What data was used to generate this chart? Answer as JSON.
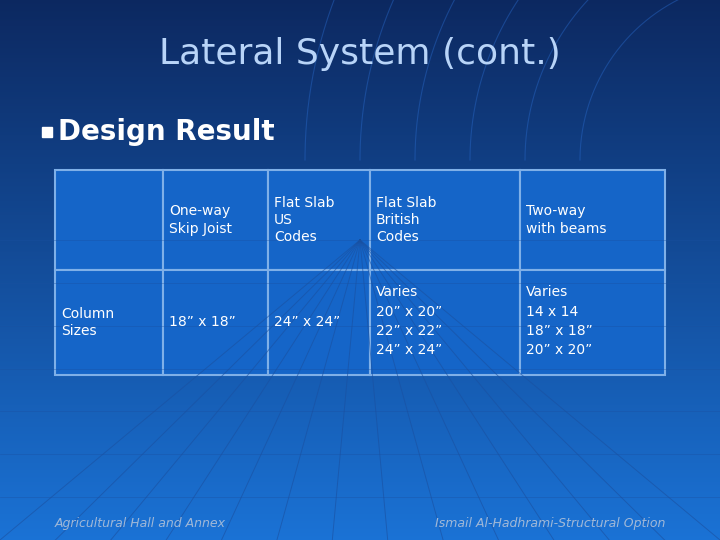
{
  "title": "Lateral System (cont.)",
  "bullet": "Design Result",
  "bg_color_top": "#1a72d5",
  "bg_color_bottom": "#0d2f6e",
  "title_color": "#b8d4f8",
  "bullet_color": "#ffffff",
  "bullet_sq_color": "#ffffff",
  "table_border_color": "#7fb0e8",
  "table_text_color": "#ffffff",
  "footer_left": "Agricultural Hall and Annex",
  "footer_right": "Ismail Al-Hadhrami-Structural Option",
  "footer_color": "#a0b8d8",
  "col_headers": [
    "",
    "One-way\nSkip Joist",
    "Flat Slab\nUS\nCodes",
    "Flat Slab\nBritish\nCodes",
    "Two-way\nwith beams"
  ],
  "row_label": "Column\nSizes",
  "row_data": [
    "18” x 18”",
    "24” x 24”",
    "Varies\n20” x 20”\n22” x 22”\n24” x 24”",
    "Varies\n14 x 14\n18” x 18”\n20” x 20”"
  ],
  "arc_color": "#2060c0",
  "grid_color": "#1a50a0"
}
